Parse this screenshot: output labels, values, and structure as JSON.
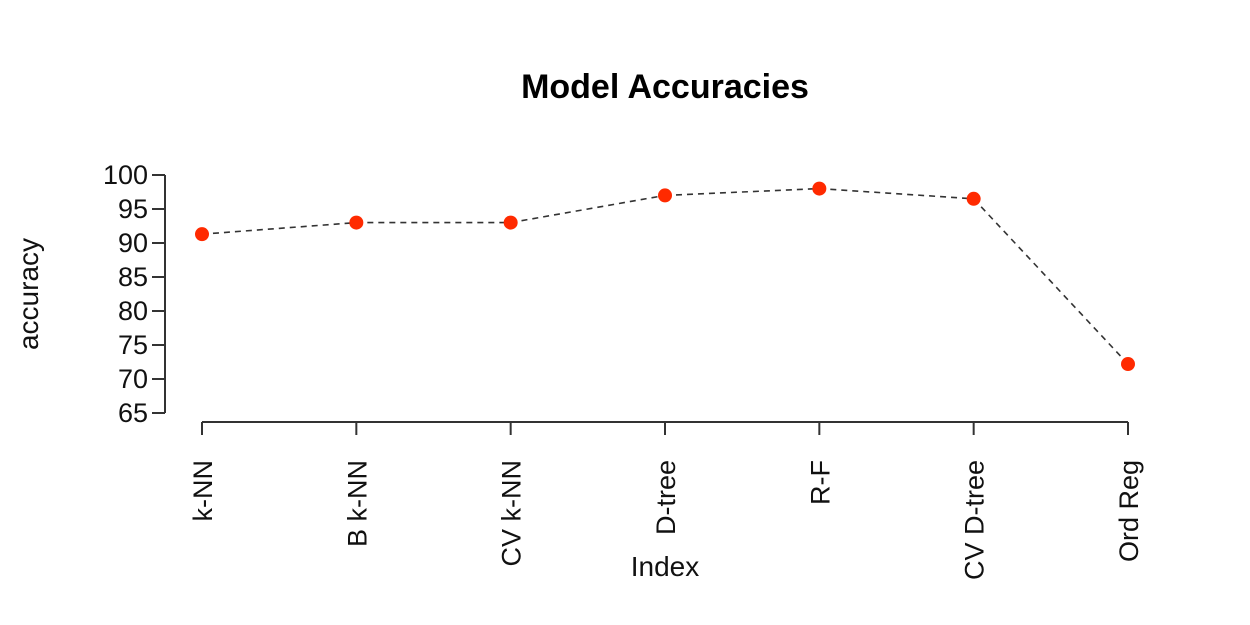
{
  "chart_data": {
    "type": "line",
    "title": "Model Accuracies",
    "xlabel": "Index",
    "ylabel": "accuracy",
    "categories": [
      "k-NN",
      "B k-NN",
      "CV k-NN",
      "D-tree",
      "R-F",
      "CV D-tree",
      "Ord Reg"
    ],
    "series": [
      {
        "values": [
          91.3,
          93.0,
          93.0,
          97.0,
          98.0,
          96.5,
          72.2
        ]
      }
    ],
    "ylim": [
      65,
      100
    ],
    "yticks": [
      65,
      70,
      75,
      80,
      85,
      90,
      95,
      100
    ],
    "grid": false,
    "line_style": "dashed",
    "marker_color": "#ff2a00",
    "line_color": "#333333"
  }
}
